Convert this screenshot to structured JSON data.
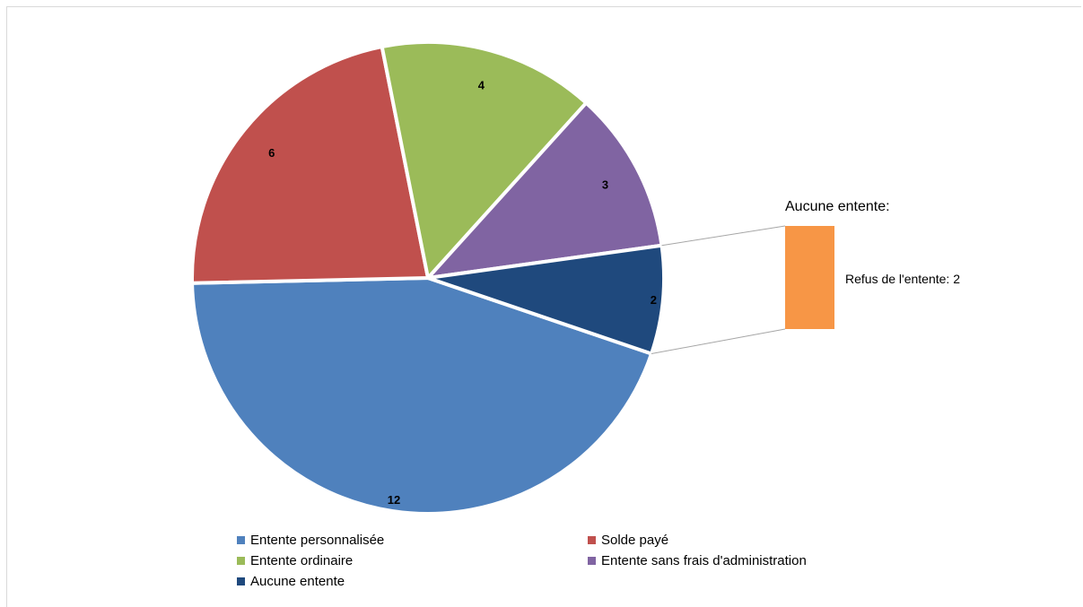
{
  "chart_data": {
    "type": "pie",
    "subtype": "bar-of-pie",
    "slices": [
      {
        "label": "Entente personnalisée",
        "value": 12,
        "color": "#4f81bd"
      },
      {
        "label": "Solde payé",
        "value": 6,
        "color": "#c0504d"
      },
      {
        "label": "Entente ordinaire",
        "value": 4,
        "color": "#9bbb59"
      },
      {
        "label": "Entente sans frais d'administration",
        "value": 3,
        "color": "#8064a2"
      },
      {
        "label": "Aucune entente",
        "value": 2,
        "color": "#1f497d"
      }
    ],
    "breakout": {
      "title": "Aucune entente:",
      "items": [
        {
          "label": "Refus de l'entente",
          "value": 2,
          "color": "#f79646",
          "text": "Refus de l'entente: 2"
        }
      ]
    },
    "legend_position": "bottom"
  },
  "legend": {
    "items": [
      {
        "label": "Entente personnalisée",
        "color": "#4f81bd"
      },
      {
        "label": "Solde payé",
        "color": "#c0504d"
      },
      {
        "label": "Entente ordinaire",
        "color": "#9bbb59"
      },
      {
        "label": "Entente sans frais d'administration",
        "color": "#8064a2"
      },
      {
        "label": "Aucune entente",
        "color": "#1f497d"
      }
    ]
  }
}
